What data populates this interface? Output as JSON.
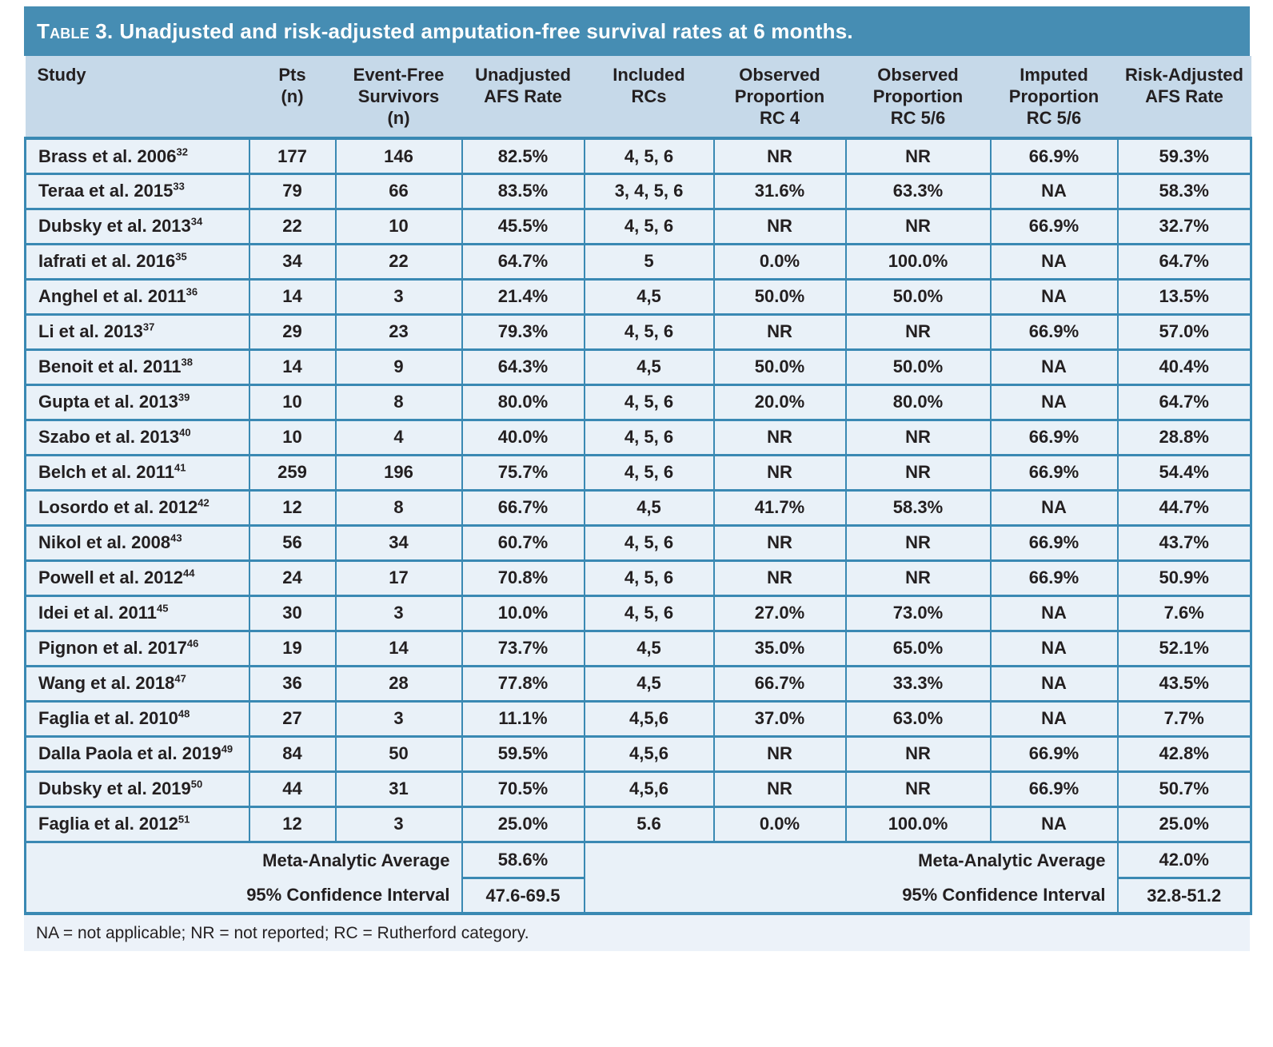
{
  "title": {
    "label": "Table 3.",
    "text": "Unadjusted and risk-adjusted amputation-free survival rates at 6 months."
  },
  "table": {
    "columns": [
      "Study",
      "Pts\n(n)",
      "Event-Free\nSurvivors\n(n)",
      "Unadjusted\nAFS Rate",
      "Included\nRCs",
      "Observed\nProportion\nRC 4",
      "Observed\nProportion\nRC 5/6",
      "Imputed\nProportion\nRC 5/6",
      "Risk-Adjusted\nAFS Rate"
    ],
    "column_keys": [
      "study",
      "pts",
      "event-free-survivors",
      "unadjusted-afs-rate",
      "included-rcs",
      "observed-proportion-rc4",
      "observed-proportion-rc56",
      "imputed-proportion-rc56",
      "risk-adjusted-afs-rate"
    ],
    "rows": [
      {
        "study": "Brass et al. 2006",
        "ref": "32",
        "values": [
          "177",
          "146",
          "82.5%",
          "4, 5, 6",
          "NR",
          "NR",
          "66.9%",
          "59.3%"
        ]
      },
      {
        "study": "Teraa et al. 2015",
        "ref": "33",
        "values": [
          "79",
          "66",
          "83.5%",
          "3, 4, 5, 6",
          "31.6%",
          "63.3%",
          "NA",
          "58.3%"
        ]
      },
      {
        "study": "Dubsky et al. 2013",
        "ref": "34",
        "values": [
          "22",
          "10",
          "45.5%",
          "4, 5, 6",
          "NR",
          "NR",
          "66.9%",
          "32.7%"
        ]
      },
      {
        "study": "Iafrati et al. 2016",
        "ref": "35",
        "values": [
          "34",
          "22",
          "64.7%",
          "5",
          "0.0%",
          "100.0%",
          "NA",
          "64.7%"
        ]
      },
      {
        "study": "Anghel et al. 2011",
        "ref": "36",
        "values": [
          "14",
          "3",
          "21.4%",
          "4,5",
          "50.0%",
          "50.0%",
          "NA",
          "13.5%"
        ]
      },
      {
        "study": "Li et al. 2013",
        "ref": "37",
        "values": [
          "29",
          "23",
          "79.3%",
          "4, 5, 6",
          "NR",
          "NR",
          "66.9%",
          "57.0%"
        ]
      },
      {
        "study": "Benoit et al. 2011",
        "ref": "38",
        "values": [
          "14",
          "9",
          "64.3%",
          "4,5",
          "50.0%",
          "50.0%",
          "NA",
          "40.4%"
        ]
      },
      {
        "study": "Gupta et al. 2013",
        "ref": "39",
        "values": [
          "10",
          "8",
          "80.0%",
          "4, 5, 6",
          "20.0%",
          "80.0%",
          "NA",
          "64.7%"
        ]
      },
      {
        "study": "Szabo et al. 2013",
        "ref": "40",
        "values": [
          "10",
          "4",
          "40.0%",
          "4, 5, 6",
          "NR",
          "NR",
          "66.9%",
          "28.8%"
        ]
      },
      {
        "study": "Belch et al. 2011",
        "ref": "41",
        "values": [
          "259",
          "196",
          "75.7%",
          "4, 5, 6",
          "NR",
          "NR",
          "66.9%",
          "54.4%"
        ]
      },
      {
        "study": "Losordo et al. 2012",
        "ref": "42",
        "values": [
          "12",
          "8",
          "66.7%",
          "4,5",
          "41.7%",
          "58.3%",
          "NA",
          "44.7%"
        ]
      },
      {
        "study": "Nikol et al. 2008",
        "ref": "43",
        "values": [
          "56",
          "34",
          "60.7%",
          "4, 5, 6",
          "NR",
          "NR",
          "66.9%",
          "43.7%"
        ]
      },
      {
        "study": "Powell et al. 2012",
        "ref": "44",
        "values": [
          "24",
          "17",
          "70.8%",
          "4, 5, 6",
          "NR",
          "NR",
          "66.9%",
          "50.9%"
        ]
      },
      {
        "study": "Idei et al. 2011",
        "ref": "45",
        "values": [
          "30",
          "3",
          "10.0%",
          "4, 5, 6",
          "27.0%",
          "73.0%",
          "NA",
          "7.6%"
        ]
      },
      {
        "study": "Pignon et al. 2017",
        "ref": "46",
        "values": [
          "19",
          "14",
          "73.7%",
          "4,5",
          "35.0%",
          "65.0%",
          "NA",
          "52.1%"
        ]
      },
      {
        "study": "Wang et al. 2018",
        "ref": "47",
        "values": [
          "36",
          "28",
          "77.8%",
          "4,5",
          "66.7%",
          "33.3%",
          "NA",
          "43.5%"
        ]
      },
      {
        "study": "Faglia et al. 2010",
        "ref": "48",
        "values": [
          "27",
          "3",
          "11.1%",
          "4,5,6",
          "37.0%",
          "63.0%",
          "NA",
          "7.7%"
        ]
      },
      {
        "study": "Dalla Paola et al. 2019",
        "ref": "49",
        "values": [
          "84",
          "50",
          "59.5%",
          "4,5,6",
          "NR",
          "NR",
          "66.9%",
          "42.8%"
        ]
      },
      {
        "study": "Dubsky et al. 2019",
        "ref": "50",
        "values": [
          "44",
          "31",
          "70.5%",
          "4,5,6",
          "NR",
          "NR",
          "66.9%",
          "50.7%"
        ]
      },
      {
        "study": "Faglia et al. 2012",
        "ref": "51",
        "values": [
          "12",
          "3",
          "25.0%",
          "5.6",
          "0.0%",
          "100.0%",
          "NA",
          "25.0%"
        ]
      }
    ],
    "footer": {
      "unadjusted": {
        "avg_label": "Meta-Analytic Average",
        "avg_value": "58.6%",
        "ci_label": "95% Confidence Interval",
        "ci_value": "47.6-69.5"
      },
      "risk_adjusted": {
        "avg_label": "Meta-Analytic Average",
        "avg_value": "42.0%",
        "ci_label": "95% Confidence Interval",
        "ci_value": "32.8-51.2"
      }
    },
    "footnote": "NA = not applicable; NR = not reported; RC = Rutherford category."
  },
  "colors": {
    "title_bar": "#468db3",
    "header_bg": "#c6d9e9",
    "row_bg": "#e9f1f8",
    "border": "#3a89b3",
    "footnote_bg": "#ecf2f9",
    "text": "#231f20",
    "title_text": "#ffffff"
  }
}
